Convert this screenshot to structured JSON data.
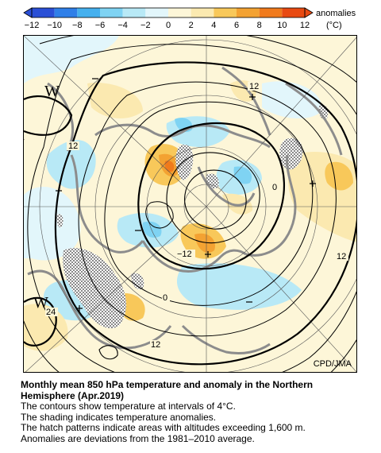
{
  "colorbar": {
    "title": "anomalies",
    "unit": "(°C)",
    "ticks": [
      "−12",
      "−10",
      "−8",
      "−6",
      "−4",
      "−2",
      "0",
      "2",
      "4",
      "6",
      "8",
      "10",
      "12"
    ],
    "colors": [
      "#2a4fd6",
      "#2f7fe8",
      "#45b0ee",
      "#7fd3f3",
      "#b8e9f6",
      "#e2f6fb",
      "#fdf6d8",
      "#fbe9b0",
      "#f8c85a",
      "#f3a232",
      "#f07a1c",
      "#e84a12"
    ]
  },
  "map": {
    "contour_labels": [
      "12",
      "12",
      "0",
      "−12",
      "0",
      "24",
      "12",
      "12"
    ],
    "pressure_labels": [
      "W",
      "W"
    ],
    "credit": "CPD/JMA"
  },
  "caption": {
    "title": "Monthly mean 850 hPa temperature and anomaly in the Northern Hemisphere (Apr.2019)",
    "lines": [
      "The contours show temperature at intervals of 4°C.",
      "The shading indicates temperature anomalies.",
      "The hatch patterns indicate areas with altitudes exceeding 1,600 m.",
      "Anomalies are deviations from the 1981–2010 average."
    ]
  }
}
